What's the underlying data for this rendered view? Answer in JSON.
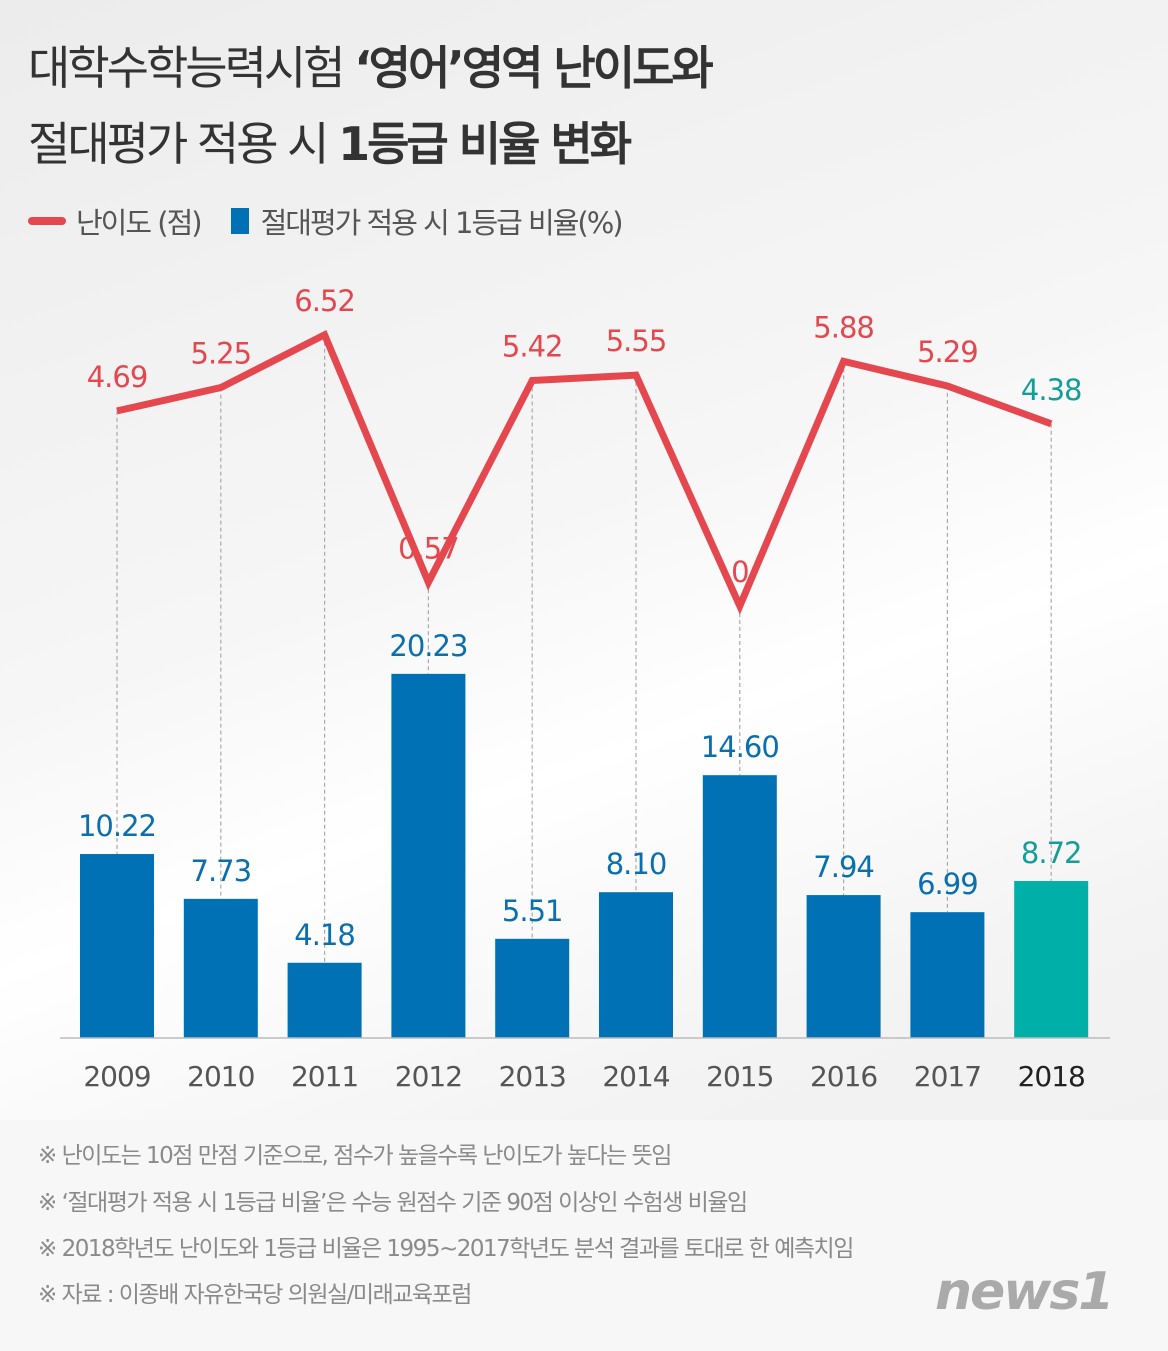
{
  "title": {
    "line1_normal": "대학수학능력시험 ",
    "line1_bold": "‘영어’영역 난이도와",
    "line2_normal": "절대평가 적용 시 ",
    "line2_bold": "1등급 비율 변화"
  },
  "chart_data": {
    "type": "bar+line",
    "categories": [
      "2009",
      "2010",
      "2011",
      "2012",
      "2013",
      "2014",
      "2015",
      "2016",
      "2017",
      "2018"
    ],
    "series": [
      {
        "name": "난이도 (점)",
        "type": "line",
        "color": "#e5474f",
        "values": [
          4.69,
          5.25,
          6.52,
          0.57,
          5.42,
          5.55,
          0,
          5.88,
          5.29,
          4.38
        ],
        "labels": [
          "4.69",
          "5.25",
          "6.52",
          "0.57",
          "5.42",
          "5.55",
          "0",
          "5.88",
          "5.29",
          "4.38"
        ]
      },
      {
        "name": "절대평가 적용 시 1등급 비율(%)",
        "type": "bar",
        "color": "#0071b5",
        "values": [
          10.22,
          7.73,
          4.18,
          20.23,
          5.51,
          8.1,
          14.6,
          7.94,
          6.99,
          8.72
        ],
        "labels": [
          "10.22",
          "7.73",
          "4.18",
          "20.23",
          "5.51",
          "8.10",
          "14.60",
          "7.94",
          "6.99",
          "8.72"
        ]
      }
    ],
    "highlight": {
      "category": "2018",
      "color": "#00b0a8"
    },
    "legend_position": "top-left",
    "grid": false
  },
  "notes": [
    "※ 난이도는 10점 만점 기준으로, 점수가 높을수록 난이도가 높다는 뜻임",
    "※ ‘절대평가 적용 시 1등급 비율’은 수능 원점수 기준 90점 이상인 수험생 비율임",
    "※ 2018학년도 난이도와 1등급 비율은 1995~2017학년도 분석 결과를 토대로 한 예측치임",
    "※ 자료 : 이종배 자유한국당 의원실/미래교육포럼"
  ],
  "logo": "news1"
}
